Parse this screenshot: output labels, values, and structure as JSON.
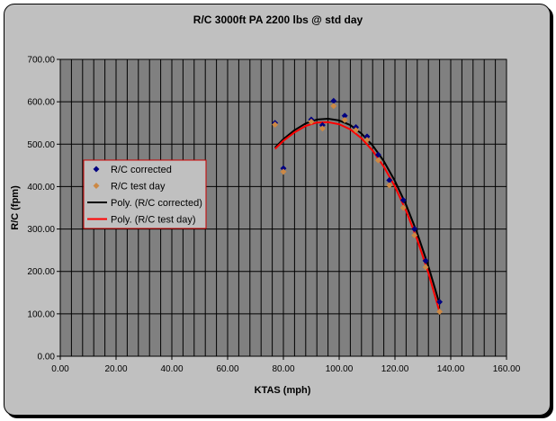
{
  "chart_data": {
    "type": "scatter",
    "title": "R/C 3000ft PA 2200 lbs @ std day",
    "xlabel": "KTAS (mph)",
    "ylabel": "R/C (fpm)",
    "xlim": [
      0,
      160
    ],
    "ylim": [
      0,
      700
    ],
    "x_ticks": [
      "0.00",
      "20.00",
      "40.00",
      "60.00",
      "80.00",
      "100.00",
      "120.00",
      "140.00",
      "160.00"
    ],
    "y_ticks": [
      "0.00",
      "100.00",
      "200.00",
      "300.00",
      "400.00",
      "500.00",
      "600.00",
      "700.00"
    ],
    "grid": true,
    "legend_position": "left",
    "plot_background": "#808080",
    "series": [
      {
        "name": "R/C corrected",
        "kind": "points",
        "color": "#000080",
        "marker": "diamond",
        "x": [
          77,
          80,
          90,
          94,
          98,
          102,
          106,
          110,
          114,
          118,
          123,
          127,
          131,
          136
        ],
        "y": [
          550,
          443,
          558,
          545,
          602,
          567,
          540,
          518,
          475,
          415,
          368,
          300,
          225,
          128
        ]
      },
      {
        "name": "R/C test day",
        "kind": "points",
        "color": "#cc8844",
        "marker": "diamond",
        "x": [
          77,
          80,
          90,
          94,
          98,
          102,
          106,
          110,
          114,
          118,
          123,
          127,
          131,
          136
        ],
        "y": [
          546,
          435,
          553,
          537,
          590,
          557,
          533,
          510,
          462,
          403,
          350,
          285,
          210,
          105
        ]
      },
      {
        "name": "Poly. (R/C corrected)",
        "kind": "line",
        "color": "#000000",
        "x": [
          77,
          80,
          84,
          88,
          92,
          96,
          100,
          104,
          108,
          112,
          116,
          120,
          124,
          128,
          132,
          136
        ],
        "y": [
          492,
          512,
          533,
          549,
          558,
          560,
          556,
          545,
          525,
          497,
          460,
          413,
          357,
          290,
          212,
          123
        ]
      },
      {
        "name": "Poly. (R/C test day)",
        "kind": "line",
        "color": "#ff0000",
        "x": [
          77,
          80,
          84,
          88,
          92,
          96,
          100,
          104,
          108,
          112,
          116,
          120,
          124,
          128,
          132,
          136
        ],
        "y": [
          489,
          508,
          528,
          543,
          551,
          552,
          547,
          535,
          514,
          485,
          447,
          400,
          343,
          275,
          196,
          104
        ]
      }
    ]
  }
}
